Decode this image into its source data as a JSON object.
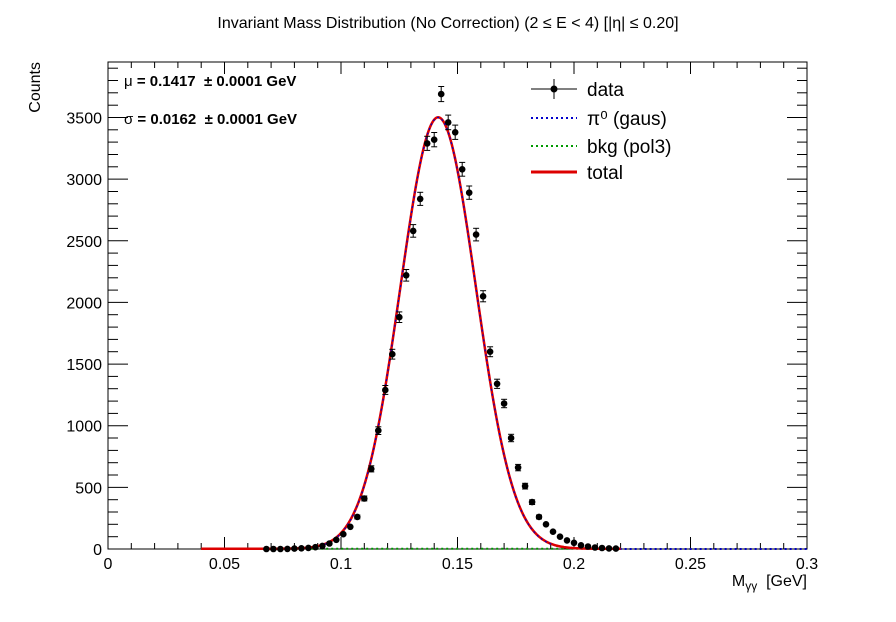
{
  "chart_data": {
    "type": "scatter",
    "title": "Invariant Mass Distribution (No Correction)   (2    ≤ E < 4)   [|η| ≤ 0.20]",
    "xlabel": "Mγγ  [GeV]",
    "xlabel_parts": {
      "main": "M",
      "sub": "γγ",
      "unit": "  [GeV]"
    },
    "ylabel": "Counts",
    "xlim": [
      0,
      0.3
    ],
    "ylim": [
      0,
      3950
    ],
    "x_ticks": [
      0,
      0.05,
      0.1,
      0.15,
      0.2,
      0.25,
      0.3
    ],
    "x_tick_labels": [
      "0",
      "0.05",
      "0.1",
      "0.15",
      "0.2",
      "0.25",
      "0.3"
    ],
    "y_ticks": [
      0,
      500,
      1000,
      1500,
      2000,
      2500,
      3000,
      3500
    ],
    "y_tick_labels": [
      "0",
      "500",
      "1000",
      "1500",
      "2000",
      "2500",
      "3000",
      "3500"
    ],
    "fit_params": [
      {
        "symbol": "μ",
        "text": " = 0.1417  ± 0.0001 GeV"
      },
      {
        "symbol": "σ",
        "text": " = 0.0162  ± 0.0001 GeV"
      }
    ],
    "legend": {
      "placement": "top-right",
      "entries": [
        {
          "label": "data",
          "style": "marker",
          "color": "#000000"
        },
        {
          "label": "π⁰ (gaus)",
          "style": "dotted",
          "color": "#0000cc"
        },
        {
          "label": "bkg (pol3)",
          "style": "dotted",
          "color": "#009900"
        },
        {
          "label": "total",
          "style": "solid",
          "color": "#dd0000"
        }
      ]
    },
    "series": [
      {
        "name": "data",
        "x": [
          0.068,
          0.071,
          0.074,
          0.077,
          0.08,
          0.083,
          0.086,
          0.089,
          0.092,
          0.095,
          0.098,
          0.101,
          0.104,
          0.107,
          0.11,
          0.113,
          0.116,
          0.119,
          0.122,
          0.125,
          0.128,
          0.131,
          0.134,
          0.137,
          0.14,
          0.143,
          0.146,
          0.149,
          0.152,
          0.155,
          0.158,
          0.161,
          0.164,
          0.167,
          0.17,
          0.173,
          0.176,
          0.179,
          0.182,
          0.185,
          0.188,
          0.191,
          0.194,
          0.197,
          0.2,
          0.203,
          0.206,
          0.209,
          0.212,
          0.215,
          0.218
        ],
        "y": [
          0,
          0,
          0,
          1,
          3,
          6,
          9,
          15,
          25,
          45,
          75,
          120,
          180,
          260,
          410,
          650,
          960,
          1290,
          1580,
          1880,
          2220,
          2580,
          2840,
          3290,
          3320,
          3690,
          3460,
          3380,
          3080,
          2890,
          2550,
          2050,
          1600,
          1340,
          1180,
          900,
          660,
          510,
          380,
          260,
          200,
          140,
          100,
          70,
          50,
          30,
          20,
          12,
          8,
          5,
          3
        ],
        "yerr": [
          0,
          0,
          0,
          0,
          2,
          2,
          3,
          4,
          5,
          7,
          9,
          11,
          13,
          16,
          20,
          25,
          31,
          36,
          40,
          43,
          47,
          51,
          53,
          57,
          58,
          61,
          59,
          58,
          56,
          54,
          51,
          45,
          40,
          37,
          34,
          30,
          26,
          23,
          19,
          16,
          14,
          12,
          10,
          8,
          7,
          5,
          4,
          3,
          3,
          2,
          2
        ]
      },
      {
        "name": "π⁰ (gaus)",
        "model": "gaus",
        "amplitude": 3500,
        "mean": 0.1417,
        "sigma": 0.0162,
        "x_range": [
          0.04,
          0.3
        ]
      },
      {
        "name": "bkg (pol3)",
        "model": "pol3",
        "approx_value": 2,
        "x_range": [
          0.04,
          0.22
        ]
      },
      {
        "name": "total",
        "model": "gaus+pol3",
        "x_range": [
          0.04,
          0.22
        ]
      }
    ]
  }
}
